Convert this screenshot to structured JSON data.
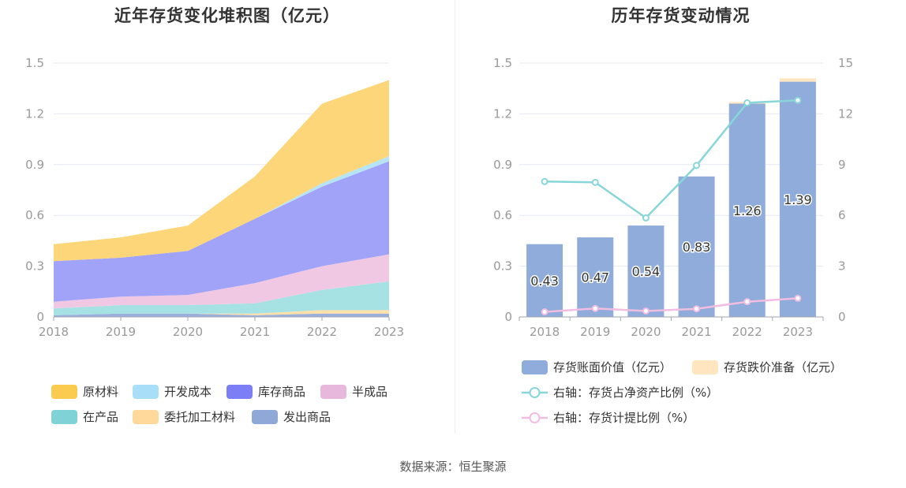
{
  "source": "数据来源：恒生聚源",
  "chart_data": [
    {
      "type": "area",
      "stacked": true,
      "title": "近年存货变化堆积图（亿元）",
      "x": [
        "2018",
        "2019",
        "2020",
        "2021",
        "2022",
        "2023"
      ],
      "ylim": [
        0,
        1.5
      ],
      "yticks": [
        "0",
        "0.3",
        "0.6",
        "0.9",
        "1.2",
        "1.5"
      ],
      "grid": true,
      "legend_position": "bottom",
      "series": [
        {
          "name": "发出商品",
          "color": "#9ab0da",
          "values": [
            0.01,
            0.02,
            0.02,
            0.01,
            0.02,
            0.02
          ]
        },
        {
          "name": "委托加工材料",
          "color": "#ffe0a8",
          "values": [
            0.0,
            0.0,
            0.0,
            0.01,
            0.02,
            0.02
          ]
        },
        {
          "name": "在产品",
          "color": "#a6e2e3",
          "values": [
            0.04,
            0.05,
            0.05,
            0.06,
            0.12,
            0.17
          ]
        },
        {
          "name": "半成品",
          "color": "#f0c8e4",
          "values": [
            0.04,
            0.05,
            0.06,
            0.12,
            0.14,
            0.16
          ]
        },
        {
          "name": "库存商品",
          "color": "#a0a3f8",
          "values": [
            0.24,
            0.23,
            0.26,
            0.38,
            0.47,
            0.55
          ]
        },
        {
          "name": "开发成本",
          "color": "#b6e4f7",
          "values": [
            0.0,
            0.0,
            0.0,
            0.0,
            0.02,
            0.03
          ]
        },
        {
          "name": "原材料",
          "color": "#fdd679",
          "values": [
            0.1,
            0.12,
            0.15,
            0.25,
            0.47,
            0.45
          ]
        }
      ],
      "legend": [
        {
          "name": "原材料",
          "color": "#fbcb50"
        },
        {
          "name": "开发成本",
          "color": "#a9def8"
        },
        {
          "name": "库存商品",
          "color": "#7b7ef4"
        },
        {
          "name": "半成品",
          "color": "#e7b7dc"
        },
        {
          "name": "在产品",
          "color": "#7fd3d7"
        },
        {
          "name": "委托加工材料",
          "color": "#ffd89c"
        },
        {
          "name": "发出商品",
          "color": "#8fa8d8"
        }
      ]
    },
    {
      "type": "bar",
      "title": "历年存货变动情况",
      "categories": [
        "2018",
        "2019",
        "2020",
        "2021",
        "2022",
        "2023"
      ],
      "ylim": [
        0,
        1.5
      ],
      "yticks": [
        "0",
        "0.3",
        "0.6",
        "0.9",
        "1.2",
        "1.5"
      ],
      "y2lim": [
        0,
        15
      ],
      "y2ticks": [
        "0",
        "3",
        "6",
        "9",
        "12",
        "15"
      ],
      "grid": true,
      "legend_position": "bottom",
      "series": [
        {
          "name": "存货账面价值（亿元）",
          "color": "#8facda",
          "stack": "a",
          "values": [
            0.43,
            0.47,
            0.54,
            0.83,
            1.26,
            1.39
          ],
          "labels": [
            "0.43",
            "0.47",
            "0.54",
            "0.83",
            "1.26",
            "1.39"
          ]
        },
        {
          "name": "存货跌价准备（亿元）",
          "color": "#ffe6c0",
          "stack": "a",
          "values": [
            0.0,
            0.0,
            0.0,
            0.0,
            0.01,
            0.02
          ]
        }
      ],
      "line_series": [
        {
          "name": "右轴：存货占净资产比例（%）",
          "color": "#88d6d8",
          "axis": "right",
          "values": [
            8.0,
            7.95,
            5.85,
            8.95,
            12.65,
            12.8
          ]
        },
        {
          "name": "右轴：存货计提比例（%）",
          "color": "#f1bde0",
          "axis": "right",
          "values": [
            0.3,
            0.5,
            0.35,
            0.48,
            0.9,
            1.1
          ]
        }
      ]
    }
  ]
}
